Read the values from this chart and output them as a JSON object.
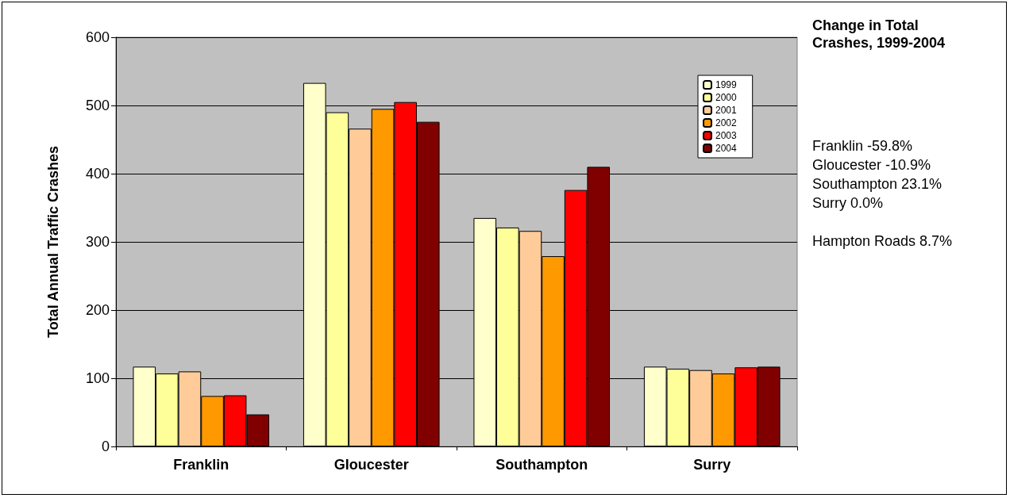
{
  "chart_data": {
    "type": "bar",
    "ylabel": "Total Annual Traffic Crashes",
    "categories": [
      "Franklin",
      "Gloucester",
      "Southampton",
      "Surry"
    ],
    "series": [
      {
        "name": "1999",
        "color": "#ffffcc",
        "values": [
          117,
          533,
          335,
          117
        ]
      },
      {
        "name": "2000",
        "color": "#ffff99",
        "values": [
          107,
          490,
          321,
          114
        ]
      },
      {
        "name": "2001",
        "color": "#ffcc99",
        "values": [
          110,
          466,
          316,
          112
        ]
      },
      {
        "name": "2002",
        "color": "#ff9900",
        "values": [
          74,
          495,
          279,
          107
        ]
      },
      {
        "name": "2003",
        "color": "#ff0000",
        "values": [
          75,
          505,
          376,
          116
        ]
      },
      {
        "name": "2004",
        "color": "#800000",
        "values": [
          47,
          476,
          410,
          117
        ]
      }
    ],
    "ylim": [
      0,
      600
    ],
    "yticks": [
      0,
      100,
      200,
      300,
      400,
      500,
      600
    ],
    "grid": "y",
    "legend": "top right",
    "annotations": [
      "Change in Total Crashes, 1999-2004",
      "Franklin -59.8%",
      "Gloucester -10.9%",
      "Southampton 23.1%",
      "Surry 0.0%",
      "Hampton Roads 8.7%"
    ]
  }
}
